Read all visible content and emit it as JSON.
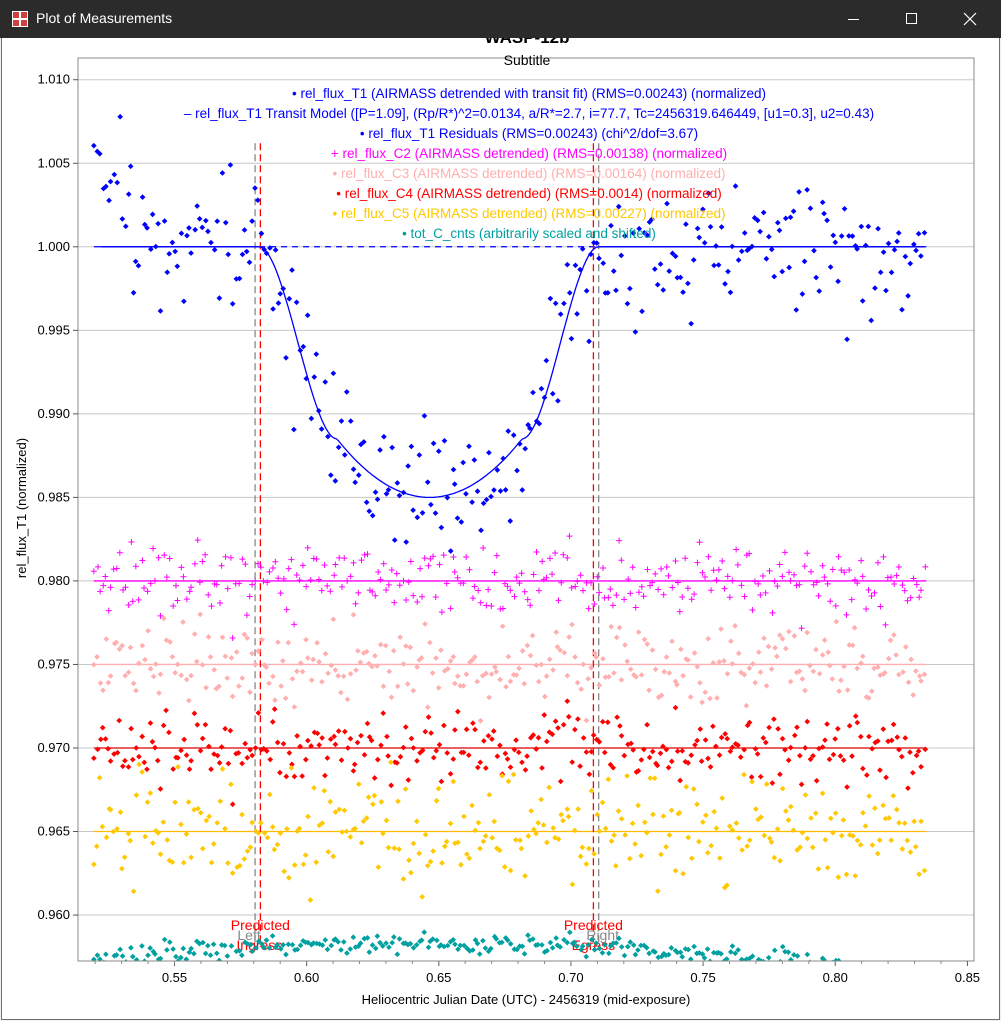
{
  "window": {
    "title": "Plot of Measurements",
    "minimize_icon": "minimize-icon",
    "maximize_icon": "maximize-icon",
    "close_icon": "close-icon"
  },
  "chart_data": {
    "type": "scatter",
    "title": "WASP-12b",
    "subtitle": "Subtitle",
    "xlabel": "Heliocentric Julian Date (UTC) - 2456319 (mid-exposure)",
    "ylabel": "rel_flux_T1 (normalized)",
    "xlim": [
      0.5135,
      0.8525
    ],
    "ylim": [
      0.95725,
      1.0113
    ],
    "x_ticks": [
      "0.55",
      "0.60",
      "0.65",
      "0.70",
      "0.75",
      "0.80",
      "0.85"
    ],
    "x_tick_values": [
      0.55,
      0.6,
      0.65,
      0.7,
      0.75,
      0.8,
      0.85
    ],
    "y_ticks": [
      "1.010",
      "1.005",
      "1.000",
      "0.995",
      "0.990",
      "0.985",
      "0.980",
      "0.975",
      "0.970",
      "0.965",
      "0.960"
    ],
    "y_tick_values": [
      1.01,
      1.005,
      1.0,
      0.995,
      0.99,
      0.985,
      0.98,
      0.975,
      0.97,
      0.965,
      0.96
    ],
    "grid": true,
    "legend": [
      {
        "marker": "•",
        "color": "#0000ff",
        "text": "rel_flux_T1 (AIRMASS detrended with transit fit) (RMS=0.00243) (normalized)"
      },
      {
        "marker": "–",
        "color": "#0000ff",
        "text": "rel_flux_T1 Transit Model ([P=1.09], (Rp/R*)^2=0.0134, a/R*=2.7, i=77.7, Tc=2456319.646449, [u1=0.3], u2=0.43)"
      },
      {
        "marker": "•",
        "color": "#0000ff",
        "text": "rel_flux_T1 Residuals (RMS=0.00243) (chi^2/dof=3.67)"
      },
      {
        "marker": "+",
        "color": "#ff00ff",
        "text": "rel_flux_C2 (AIRMASS detrended) (RMS=0.00138) (normalized)"
      },
      {
        "marker": "•",
        "color": "#ffafaf",
        "text": "rel_flux_C3 (AIRMASS detrended) (RMS=0.00164) (normalized)"
      },
      {
        "marker": "•",
        "color": "#ff0000",
        "text": "rel_flux_C4 (AIRMASS detrended) (RMS=0.0014) (normalized)"
      },
      {
        "marker": "•",
        "color": "#ffc800",
        "text": "rel_flux_C5 (AIRMASS detrended) (RMS=0.00227) (normalized)"
      },
      {
        "marker": "•",
        "color": "#00a0a0",
        "text": "tot_C_cnts (arbitrarily scaled and shifted)"
      }
    ],
    "series": [
      {
        "name": "rel_flux_T1",
        "color": "#0000ff",
        "marker": "dot",
        "baseline": 1.0,
        "transit": true,
        "scatter": 0.00243,
        "seed": 11
      },
      {
        "name": "rel_flux_C2",
        "color": "#ff00ff",
        "marker": "plus",
        "baseline": 0.98,
        "scatter": 0.00138,
        "seed": 22
      },
      {
        "name": "rel_flux_C3",
        "color": "#ffafaf",
        "marker": "dot",
        "baseline": 0.975,
        "scatter": 0.00164,
        "seed": 33
      },
      {
        "name": "rel_flux_C4",
        "color": "#ff0000",
        "marker": "dot",
        "baseline": 0.97,
        "scatter": 0.0014,
        "seed": 44
      },
      {
        "name": "rel_flux_C5",
        "color": "#ffc800",
        "marker": "dot",
        "baseline": 0.965,
        "scatter": 0.00227,
        "seed": 55
      },
      {
        "name": "tot_C_cnts",
        "color": "#00a0a0",
        "marker": "dot",
        "baseline": 0.9575,
        "arc": true,
        "scatter": 0.0003,
        "seed": 66
      }
    ],
    "transit_model": {
      "x_start": 0.5225,
      "x_end": 0.8345,
      "ingress_start": 0.582,
      "ingress_end": 0.6115,
      "egress_start": 0.6815,
      "egress_end": 0.7105,
      "depth": 0.015
    },
    "baselines": [
      {
        "y": 1.0,
        "color": "#0000ff",
        "dashed_between": [
          0.582,
          0.7105
        ]
      },
      {
        "y": 0.98,
        "color": "#ff00ff"
      },
      {
        "y": 0.975,
        "color": "#ffafaf"
      },
      {
        "y": 0.97,
        "color": "#dd0000"
      },
      {
        "y": 0.965,
        "color": "#ffbb00"
      }
    ],
    "markers": [
      {
        "x": 0.5805,
        "color": "#888888",
        "label": "Left"
      },
      {
        "x": 0.5825,
        "color": "#ff0000",
        "label": "Predicted Ingress"
      },
      {
        "x": 0.7085,
        "color": "#ff0000",
        "label": "Predicted Egress"
      },
      {
        "x": 0.7105,
        "color": "#888888",
        "label": "Right"
      }
    ],
    "x_range": [
      0.5195,
      0.8345
    ]
  }
}
